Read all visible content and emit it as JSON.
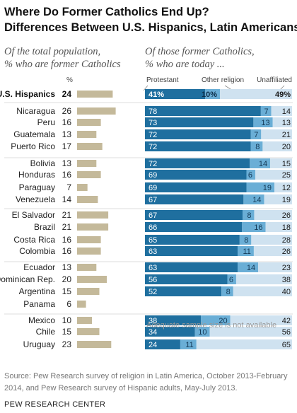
{
  "title_line1": "Where Do Former Catholics End Up?",
  "title_line2": "Differences Between U.S. Hispanics, Latin Americans",
  "left_subtitle_line1": "Of the total population,",
  "left_subtitle_line2": "% who are former Catholics",
  "right_subtitle_line1": "Of those former Catholics,",
  "right_subtitle_line2": "% who are today ...",
  "pct_header": "%",
  "col_protestant": "Protestant",
  "col_other": "Other religion",
  "col_unaffiliated": "Unaffiliated",
  "not_available_note": "Adequate sample size is not available",
  "source_line1": "Source: Pew Research survey of religion in Latin America, October 2013-February",
  "source_line2": "2014, and Pew Research survey of Hispanic adults, May-July 2013.",
  "brand": "PEW RESEARCH CENTER",
  "colors": {
    "former_bar": "#c4b99a",
    "protestant": "#1f6f9f",
    "other": "#6aaed6",
    "unaffiliated": "#cfe2f0",
    "divider": "#dddddd"
  },
  "chart_data": {
    "type": "bar",
    "categories": [
      "U.S. Hispanics",
      "Nicaragua",
      "Peru",
      "Guatemala",
      "Puerto Rico",
      "Bolivia",
      "Honduras",
      "Paraguay",
      "Venezuela",
      "El Salvador",
      "Brazil",
      "Costa Rica",
      "Colombia",
      "Ecuador",
      "Dominican Rep.",
      "Argentina",
      "Panama",
      "Mexico",
      "Chile",
      "Uruguay"
    ],
    "former_catholics": [
      24,
      26,
      16,
      13,
      17,
      13,
      16,
      7,
      14,
      21,
      21,
      16,
      16,
      13,
      20,
      15,
      6,
      10,
      15,
      23
    ],
    "series": [
      {
        "name": "Protestant",
        "values": [
          41,
          78,
          73,
          72,
          72,
          72,
          69,
          69,
          67,
          67,
          66,
          65,
          63,
          63,
          56,
          52,
          null,
          38,
          34,
          24
        ]
      },
      {
        "name": "Other religion",
        "values": [
          10,
          7,
          13,
          7,
          8,
          14,
          6,
          19,
          14,
          8,
          16,
          8,
          11,
          14,
          6,
          8,
          null,
          20,
          10,
          11
        ]
      },
      {
        "name": "Unaffiliated",
        "values": [
          49,
          14,
          13,
          21,
          20,
          15,
          25,
          12,
          19,
          26,
          18,
          28,
          26,
          23,
          38,
          40,
          null,
          42,
          56,
          65
        ]
      }
    ],
    "value_labels": [
      [
        "41%",
        "10%",
        "49%"
      ],
      [
        "78",
        "7",
        "14"
      ],
      [
        "73",
        "13",
        "13"
      ],
      [
        "72",
        "7",
        "21"
      ],
      [
        "72",
        "8",
        "20"
      ],
      [
        "72",
        "14",
        "15"
      ],
      [
        "69",
        "6",
        "25"
      ],
      [
        "69",
        "19",
        "12"
      ],
      [
        "67",
        "14",
        "19"
      ],
      [
        "67",
        "8",
        "26"
      ],
      [
        "66",
        "16",
        "18"
      ],
      [
        "65",
        "8",
        "28"
      ],
      [
        "63",
        "11",
        "26"
      ],
      [
        "63",
        "14",
        "23"
      ],
      [
        "56",
        "6",
        "38"
      ],
      [
        "52",
        "8",
        "40"
      ],
      [
        null,
        null,
        null
      ],
      [
        "38",
        "20",
        "42"
      ],
      [
        "34",
        "10",
        "56"
      ],
      [
        "24",
        "11",
        "65"
      ]
    ],
    "xlim": [
      0,
      100
    ]
  }
}
